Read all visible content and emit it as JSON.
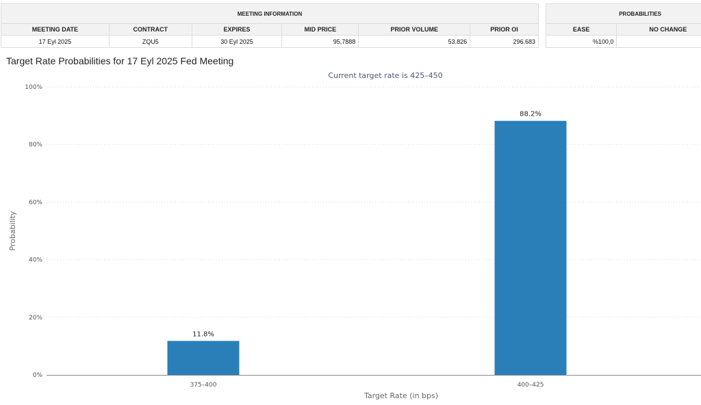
{
  "meeting_table": {
    "group_header": "MEETING INFORMATION",
    "columns": [
      "MEETING DATE",
      "CONTRACT",
      "EXPIRES",
      "MID PRICE",
      "PRIOR VOLUME",
      "PRIOR OI"
    ],
    "row": [
      "17 Eyl 2025",
      "ZQU5",
      "30 Eyl 2025",
      "95,7888",
      "53.826",
      "296.683"
    ]
  },
  "prob_table": {
    "group_header": "PROBABILITIES",
    "columns": [
      "EASE",
      "NO CHANGE"
    ],
    "row": [
      "%100,0",
      ""
    ]
  },
  "chart_title": "Target Rate Probabilities for 17 Eyl 2025 Fed Meeting",
  "chart_data": {
    "type": "bar",
    "title": "",
    "subtitle": "Current target rate is 425–450",
    "xlabel": "Target Rate (in bps)",
    "ylabel": "Probability",
    "categories": [
      "375–400",
      "400–425"
    ],
    "values": [
      11.8,
      88.2
    ],
    "value_labels": [
      "11.8%",
      "88.2%"
    ],
    "ylim": [
      0,
      100
    ],
    "yticks": [
      0,
      20,
      40,
      60,
      80,
      100
    ],
    "ytick_labels": [
      "0%",
      "20%",
      "40%",
      "60%",
      "80%",
      "100%"
    ],
    "grid": true,
    "bar_color": "#2a7fb8"
  }
}
